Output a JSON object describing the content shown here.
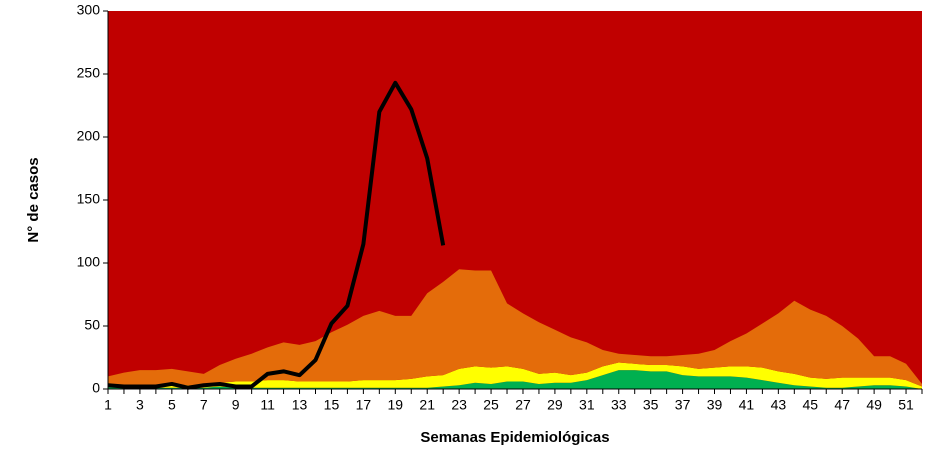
{
  "chart_data": {
    "type": "stacked-area-line",
    "y_label": "N° de casos",
    "x_label": "Semanas Epidemiológicas",
    "categories": [
      1,
      null,
      3,
      null,
      5,
      null,
      7,
      null,
      9,
      null,
      11,
      null,
      13,
      null,
      15,
      null,
      17,
      null,
      19,
      null,
      21,
      null,
      23,
      null,
      25,
      null,
      27,
      null,
      29,
      null,
      31,
      null,
      33,
      null,
      35,
      null,
      37,
      null,
      39,
      null,
      41,
      null,
      43,
      null,
      45,
      null,
      47,
      null,
      49,
      null,
      51,
      null
    ],
    "background_color": "#c00000",
    "ylim": [
      0,
      300
    ],
    "yticks": [
      0,
      50,
      100,
      150,
      200,
      250,
      300
    ],
    "series": [
      {
        "color": "#00b050",
        "stack": true,
        "values": [
          2,
          1,
          1,
          1,
          1,
          1,
          1,
          2,
          1,
          1,
          1,
          1,
          1,
          1,
          1,
          1,
          1,
          1,
          1,
          1,
          1,
          2,
          3,
          5,
          4,
          6,
          6,
          4,
          5,
          5,
          7,
          11,
          15,
          15,
          14,
          14,
          11,
          10,
          10,
          10,
          9,
          7,
          5,
          3,
          2,
          1,
          1,
          2,
          3,
          3,
          2,
          0
        ]
      },
      {
        "color": "#ffff00",
        "stack": true,
        "values": [
          2,
          2,
          2,
          2,
          3,
          2,
          2,
          3,
          5,
          5,
          6,
          6,
          5,
          5,
          5,
          5,
          6,
          6,
          6,
          7,
          9,
          9,
          13,
          13,
          13,
          12,
          10,
          8,
          8,
          6,
          6,
          7,
          6,
          5,
          5,
          5,
          7,
          6,
          7,
          8,
          9,
          10,
          9,
          9,
          7,
          7,
          8,
          7,
          6,
          6,
          5,
          2
        ]
      },
      {
        "color": "#e46c0a",
        "stack": true,
        "values": [
          6,
          10,
          12,
          12,
          12,
          11,
          9,
          14,
          18,
          22,
          26,
          30,
          29,
          32,
          39,
          45,
          51,
          55,
          51,
          50,
          66,
          74,
          79,
          76,
          77,
          50,
          44,
          41,
          34,
          30,
          24,
          13,
          7,
          7,
          7,
          7,
          9,
          12,
          14,
          20,
          26,
          35,
          46,
          58,
          54,
          50,
          41,
          31,
          17,
          17,
          13,
          2
        ]
      },
      {
        "color": "#000000",
        "stack": false,
        "values": [
          3,
          2,
          2,
          2,
          4,
          1,
          3,
          4,
          2,
          2,
          12,
          14,
          11,
          23,
          52,
          66,
          115,
          220,
          243,
          222,
          183,
          114,
          null,
          null,
          null,
          null,
          null,
          null,
          null,
          null,
          null,
          null,
          null,
          null,
          null,
          null,
          null,
          null,
          null,
          null,
          null,
          null,
          null,
          null,
          null,
          null,
          null,
          null,
          null,
          null,
          null,
          null
        ]
      }
    ]
  }
}
